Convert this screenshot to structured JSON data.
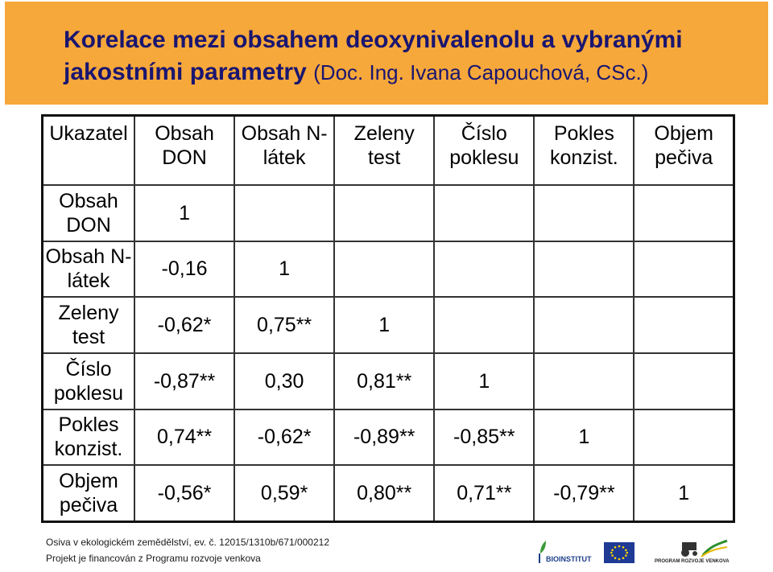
{
  "title": {
    "main": "Korelace mezi obsahem deoxynivalenolu a vybranými jakostními parametry",
    "author": "(Doc. Ing. Ivana Capouchová, CSc.)"
  },
  "table": {
    "corner": "Ukazatel",
    "columns": [
      "Obsah DON",
      "Obsah N-látek",
      "Zeleny test",
      "Číslo poklesu",
      "Pokles konzist.",
      "Objem pečiva"
    ],
    "rows": [
      {
        "label": "Obsah DON",
        "cells": [
          "1",
          "",
          "",
          "",
          "",
          ""
        ]
      },
      {
        "label": "Obsah N-látek",
        "cells": [
          "-0,16",
          "1",
          "",
          "",
          "",
          ""
        ]
      },
      {
        "label": "Zeleny test",
        "cells": [
          "-0,62*",
          "0,75**",
          "1",
          "",
          "",
          ""
        ]
      },
      {
        "label": "Číslo poklesu",
        "cells": [
          "-0,87**",
          "0,30",
          "0,81**",
          "1",
          "",
          ""
        ]
      },
      {
        "label": "Pokles konzist.",
        "cells": [
          "0,74**",
          "-0,62*",
          "-0,89**",
          "-0,85**",
          "1",
          ""
        ]
      },
      {
        "label": "Objem pečiva",
        "cells": [
          "-0,56*",
          "0,59*",
          "0,80**",
          "0,71**",
          "-0,79**",
          "1"
        ]
      }
    ]
  },
  "footer": {
    "line1": "Osiva v ekologickém zemědělství, ev. č. 12015/1310b/671/000212",
    "line2": "Projekt je financován z Programu rozvoje venkova",
    "logo_bioinstitut": "BIOINSTITUT",
    "logo_prv": "PROGRAM ROZVOJE VENKOVA"
  },
  "colors": {
    "title_band": "#f7a83a",
    "title_text": "#1a1670",
    "eu_flag": "#1e3a94",
    "eu_stars": "#ffd700"
  }
}
